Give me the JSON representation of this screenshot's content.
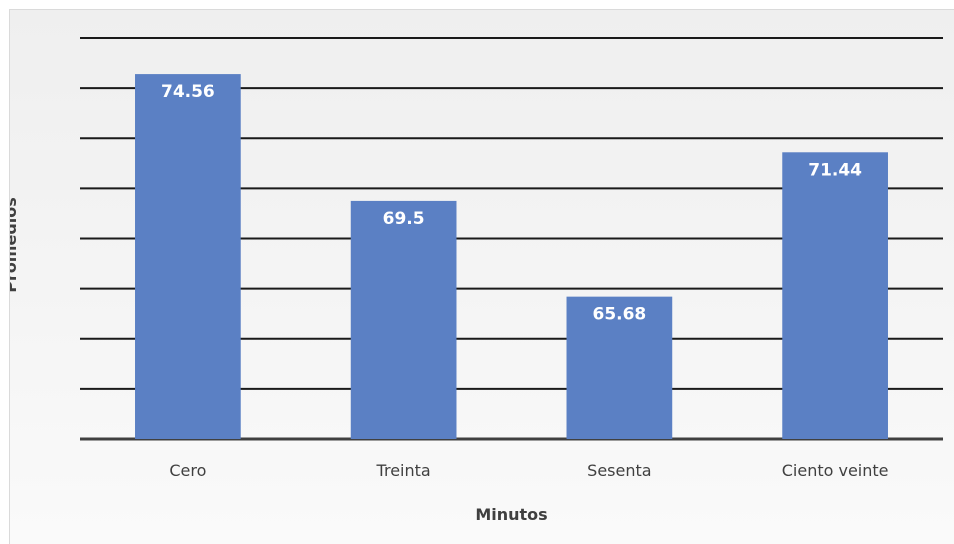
{
  "chart_data": {
    "type": "bar",
    "categories": [
      "Cero",
      "Treinta",
      "Sesenta",
      "Ciento veinte"
    ],
    "values": [
      74.56,
      69.5,
      65.68,
      71.44
    ],
    "data_labels": [
      "74.56",
      "69.5",
      "65.68",
      "71.44"
    ],
    "xlabel": "Minutos",
    "ylabel": "Promedios",
    "ylim": [
      60,
      76
    ],
    "grid": true,
    "legend": "none",
    "colors": {
      "bar": "#5b80c4",
      "gridline": "#1a1a1a",
      "data_label": "#ffffff",
      "text": "#404040",
      "background": "#f2f2f2"
    }
  }
}
